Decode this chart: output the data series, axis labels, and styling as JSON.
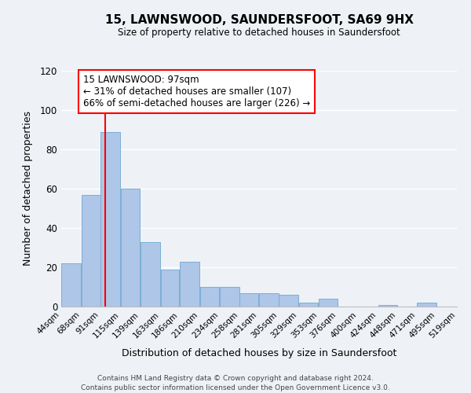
{
  "title": "15, LAWNSWOOD, SAUNDERSFOOT, SA69 9HX",
  "subtitle": "Size of property relative to detached houses in Saundersfoot",
  "xlabel": "Distribution of detached houses by size in Saundersfoot",
  "ylabel": "Number of detached properties",
  "footer_line1": "Contains HM Land Registry data © Crown copyright and database right 2024.",
  "footer_line2": "Contains public sector information licensed under the Open Government Licence v3.0.",
  "annotation_line1": "15 LAWNSWOOD: 97sqm",
  "annotation_line2": "← 31% of detached houses are smaller (107)",
  "annotation_line3": "66% of semi-detached houses are larger (226) →",
  "bar_color": "#aec6e8",
  "bar_edge_color": "#7bafd4",
  "redline_x": 97,
  "ylim": [
    0,
    120
  ],
  "yticks": [
    0,
    20,
    40,
    60,
    80,
    100,
    120
  ],
  "bin_edges": [
    44,
    68,
    91,
    115,
    139,
    163,
    186,
    210,
    234,
    258,
    281,
    305,
    329,
    353,
    376,
    400,
    424,
    448,
    471,
    495,
    519
  ],
  "bar_heights": [
    22,
    57,
    89,
    60,
    33,
    19,
    23,
    10,
    10,
    7,
    7,
    6,
    2,
    4,
    0,
    0,
    1,
    0,
    2,
    0
  ],
  "tick_labels": [
    "44sqm",
    "68sqm",
    "91sqm",
    "115sqm",
    "139sqm",
    "163sqm",
    "186sqm",
    "210sqm",
    "234sqm",
    "258sqm",
    "281sqm",
    "305sqm",
    "329sqm",
    "353sqm",
    "376sqm",
    "400sqm",
    "424sqm",
    "448sqm",
    "471sqm",
    "495sqm",
    "519sqm"
  ],
  "background_color": "#eef2f7"
}
